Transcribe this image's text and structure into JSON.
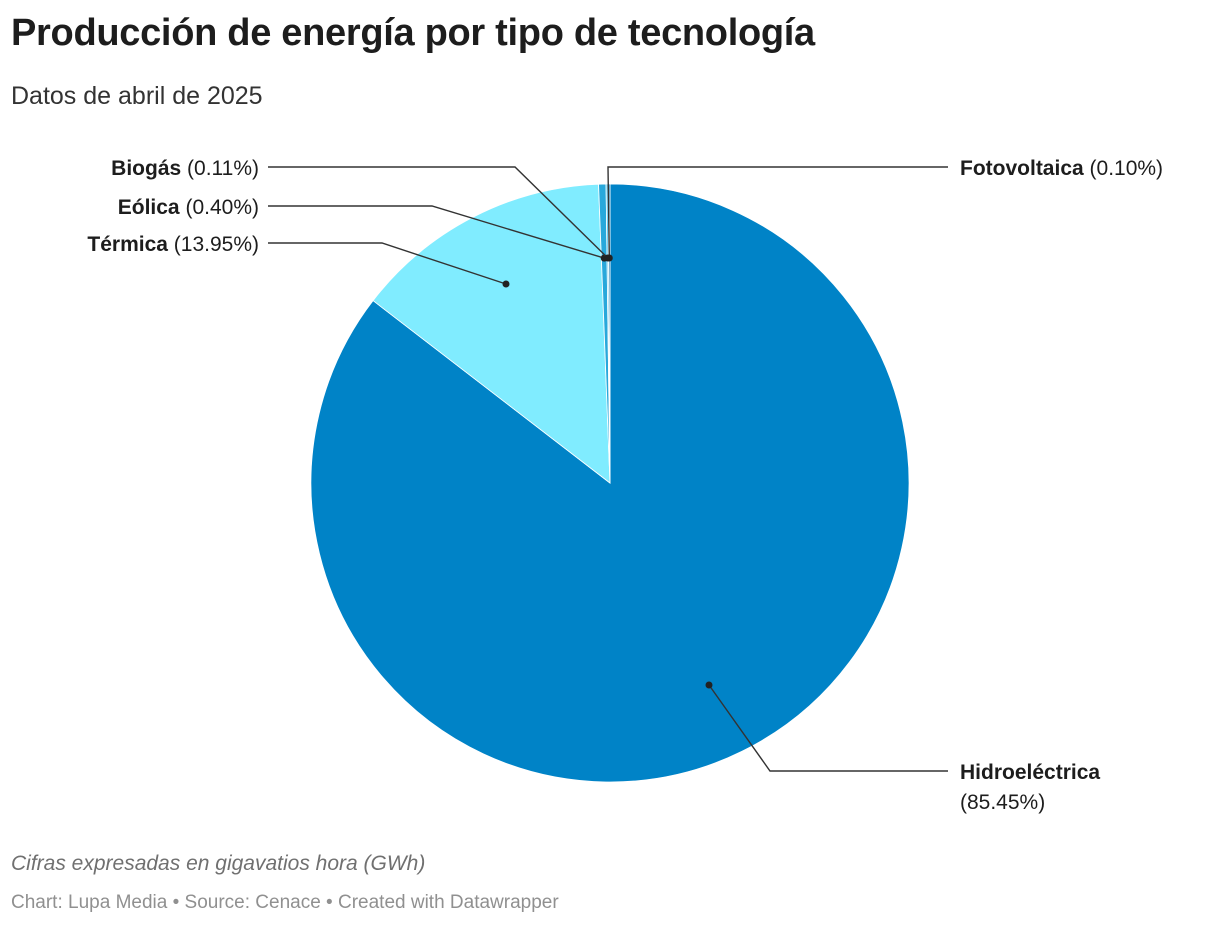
{
  "header": {
    "title": "Producción de energía por tipo de tecnología",
    "subtitle": "Datos de abril de 2025"
  },
  "notes": {
    "unit_note": "Cifras expresadas en gigavatios hora (GWh)",
    "credits": "Chart: Lupa Media • Source: Cenace • Created with Datawrapper"
  },
  "chart_data": {
    "type": "pie",
    "title": "Producción de energía por tipo de tecnología",
    "subtitle": "Datos de abril de 2025",
    "unit": "GWh",
    "legend": "none (direct labels)",
    "slices": [
      {
        "name": "Hidroeléctrica",
        "percent": 85.45,
        "label": "(85.45%)",
        "color": "#0083c7"
      },
      {
        "name": "Térmica",
        "percent": 13.95,
        "label": "(13.95%)",
        "color": "#80ecff"
      },
      {
        "name": "Eólica",
        "percent": 0.4,
        "label": "(0.40%)",
        "color": "#28a8db"
      },
      {
        "name": "Biogás",
        "percent": 0.11,
        "label": "(0.11%)",
        "color": "#5cc8ee"
      },
      {
        "name": "Fotovoltaica",
        "percent": 0.1,
        "label": "(0.10%)",
        "color": "#0d6fa8"
      }
    ]
  }
}
